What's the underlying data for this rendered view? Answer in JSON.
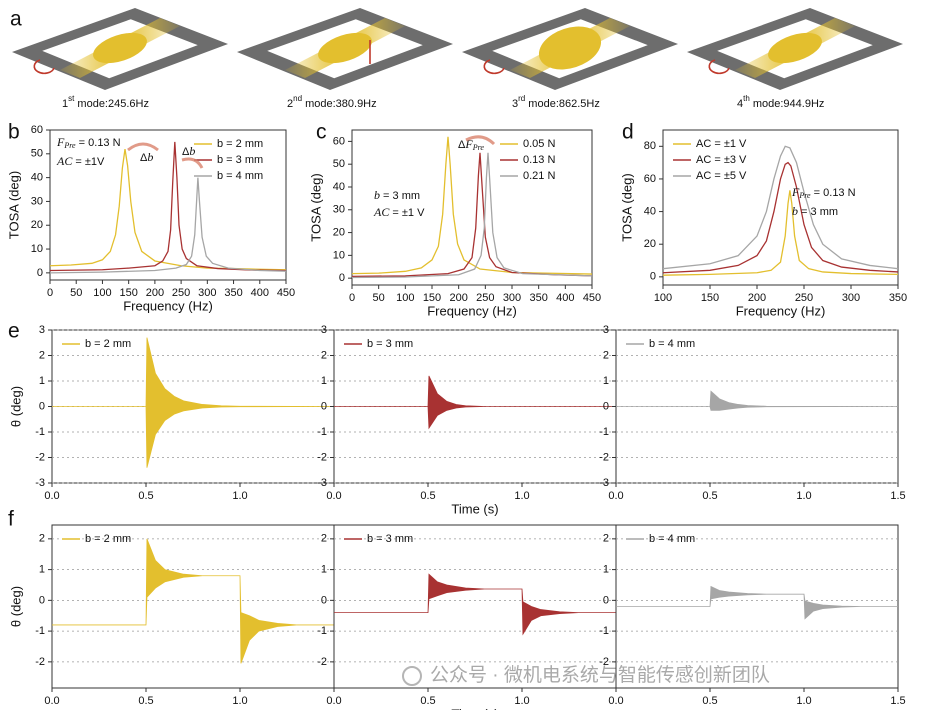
{
  "panel_labels": [
    "a",
    "b",
    "c",
    "d",
    "e",
    "f"
  ],
  "modes": [
    {
      "number": "1",
      "suffix": "st",
      "label": " mode:245.6Hz"
    },
    {
      "number": "2",
      "suffix": "nd",
      "label": " mode:380.9Hz"
    },
    {
      "number": "3",
      "suffix": "rd",
      "label": " mode:862.5Hz"
    },
    {
      "number": "4",
      "suffix": "th",
      "label": " mode:944.9Hz"
    }
  ],
  "watermark": "公众号 · 微机电系统与智能传感创新团队",
  "chart_data": [
    {
      "type": "line",
      "xlabel": "Frequency (Hz)",
      "ylabel": "TOSA (deg)",
      "xlim": [
        0,
        450
      ],
      "xticks": [
        0,
        50,
        100,
        150,
        200,
        250,
        300,
        350,
        400,
        450
      ],
      "ylim": [
        -3,
        60
      ],
      "yticks": [
        0,
        10,
        20,
        30,
        40,
        50,
        60
      ],
      "grid": false,
      "legend": "upper right",
      "annotations": [
        {
          "parts": [
            {
              "t": "F",
              "style": "italic"
            },
            {
              "t": "Pre",
              "style": "sub"
            },
            {
              "t": " = 0.13 N"
            }
          ]
        },
        {
          "parts": [
            {
              "t": "AC",
              "style": "italic"
            },
            {
              "t": " = ±1V"
            }
          ]
        },
        {
          "parts": [
            {
              "t": "Δ"
            },
            {
              "t": "b",
              "style": "italic"
            }
          ]
        },
        {
          "parts": [
            {
              "t": "Δ"
            },
            {
              "t": "b",
              "style": "italic"
            }
          ]
        }
      ],
      "series": [
        {
          "name": "b = 2 mm",
          "color": "#e3bf2e",
          "x": [
            0,
            40,
            80,
            100,
            115,
            125,
            132,
            138,
            143,
            148,
            154,
            162,
            175,
            200,
            250,
            300,
            350,
            400,
            450
          ],
          "values": [
            3,
            3.3,
            4,
            5.5,
            9,
            16,
            28,
            44,
            52,
            45,
            30,
            17,
            9,
            5,
            3,
            2,
            1.8,
            1.5,
            1.3
          ]
        },
        {
          "name": "b = 3 mm",
          "color": "#a83232",
          "x": [
            0,
            100,
            150,
            200,
            215,
            225,
            230,
            234,
            238,
            242,
            246,
            252,
            260,
            280,
            320,
            380,
            450
          ],
          "values": [
            1,
            1.3,
            2,
            3,
            5,
            9,
            18,
            38,
            55,
            40,
            20,
            10,
            6,
            3,
            1.8,
            1.2,
            1
          ]
        },
        {
          "name": "b = 4 mm",
          "color": "#a6a6a6",
          "x": [
            0,
            100,
            200,
            240,
            260,
            270,
            276,
            280,
            282,
            285,
            290,
            298,
            310,
            340,
            400,
            450
          ],
          "values": [
            0,
            0.3,
            1,
            2,
            3.5,
            7,
            16,
            32,
            40,
            30,
            15,
            7,
            4,
            2,
            1,
            0.7
          ]
        }
      ]
    },
    {
      "type": "line",
      "xlabel": "Frequency (Hz)",
      "ylabel": "TOSA (deg)",
      "xlim": [
        0,
        450
      ],
      "xticks": [
        0,
        50,
        100,
        150,
        200,
        250,
        300,
        350,
        400,
        450
      ],
      "ylim": [
        -3,
        65
      ],
      "yticks": [
        0,
        10,
        20,
        30,
        40,
        50,
        60
      ],
      "grid": false,
      "legend": "upper right",
      "annotations": [
        {
          "parts": [
            {
              "t": "Δ"
            },
            {
              "t": "F",
              "style": "italic"
            },
            {
              "t": "Pre",
              "style": "sub"
            }
          ]
        },
        {
          "parts": [
            {
              "t": "b",
              "style": "italic"
            },
            {
              "t": " = 3 mm"
            }
          ]
        },
        {
          "parts": [
            {
              "t": "AC",
              "style": "italic"
            },
            {
              "t": " = ±1 V"
            }
          ]
        }
      ],
      "series": [
        {
          "name": "0.05 N",
          "color": "#e3bf2e",
          "x": [
            0,
            50,
            100,
            130,
            150,
            162,
            170,
            176,
            180,
            184,
            190,
            198,
            210,
            240,
            300,
            450
          ],
          "values": [
            2,
            2.2,
            3,
            4.5,
            8,
            14,
            28,
            50,
            62,
            50,
            28,
            15,
            8,
            4,
            2.5,
            1.8
          ]
        },
        {
          "name": "0.13 N",
          "color": "#a83232",
          "x": [
            0,
            100,
            180,
            210,
            225,
            232,
            237,
            240,
            244,
            250,
            258,
            270,
            300,
            380,
            450
          ],
          "values": [
            0.8,
            1,
            2,
            4,
            9,
            22,
            45,
            55,
            40,
            18,
            9,
            5,
            2.5,
            1.5,
            1
          ]
        },
        {
          "name": "0.21 N",
          "color": "#a6a6a6",
          "x": [
            0,
            100,
            200,
            230,
            242,
            248,
            252,
            255,
            258,
            264,
            272,
            285,
            320,
            450
          ],
          "values": [
            0.3,
            0.5,
            1.5,
            4,
            10,
            22,
            44,
            55,
            44,
            20,
            9,
            4.5,
            2,
            1
          ]
        }
      ]
    },
    {
      "type": "line",
      "xlabel": "Frequency (Hz)",
      "ylabel": "TOSA (deg)",
      "xlim": [
        100,
        350
      ],
      "xticks": [
        100,
        150,
        200,
        250,
        300,
        350
      ],
      "ylim": [
        -5,
        90
      ],
      "yticks": [
        0,
        20,
        40,
        60,
        80
      ],
      "grid": false,
      "legend": "upper left",
      "annotations": [
        {
          "parts": [
            {
              "t": "F",
              "style": "italic"
            },
            {
              "t": "Pre",
              "style": "sub"
            },
            {
              "t": " = 0.13 N"
            }
          ]
        },
        {
          "parts": [
            {
              "t": "b",
              "style": "italic"
            },
            {
              "t": " = 3 mm"
            }
          ]
        }
      ],
      "series": [
        {
          "name": "AC = ±1 V",
          "color": "#e3bf2e",
          "x": [
            100,
            150,
            200,
            215,
            225,
            230,
            233,
            235,
            237,
            240,
            245,
            255,
            270,
            300,
            350
          ],
          "values": [
            1,
            1.5,
            2.5,
            4,
            9,
            25,
            45,
            53,
            45,
            25,
            10,
            5,
            3,
            2,
            1.5
          ]
        },
        {
          "name": "AC = ±3 V",
          "color": "#a83232",
          "x": [
            100,
            150,
            180,
            200,
            210,
            218,
            225,
            230,
            233,
            236,
            242,
            250,
            258,
            270,
            290,
            320,
            350
          ],
          "values": [
            2.5,
            4,
            7,
            13,
            22,
            40,
            60,
            69,
            70,
            68,
            55,
            32,
            18,
            10,
            6,
            4,
            3
          ]
        },
        {
          "name": "AC = ±5 V",
          "color": "#a6a6a6",
          "x": [
            100,
            150,
            180,
            200,
            210,
            218,
            225,
            230,
            235,
            242,
            250,
            260,
            270,
            290,
            320,
            350
          ],
          "values": [
            5,
            8,
            13,
            25,
            40,
            60,
            74,
            80,
            79,
            70,
            52,
            32,
            20,
            11,
            7,
            5
          ]
        }
      ]
    },
    {
      "type": "envelope",
      "ylabel": "θ (deg)",
      "xlim": [
        0,
        1.5
      ],
      "xticks": [
        {
          "value": 0,
          "label": "0.0"
        },
        0.5,
        {
          "value": 1,
          "label": "1.0"
        }
      ],
      "ylim": [
        -3,
        3
      ],
      "yticks": [
        -3,
        -2,
        -1,
        0,
        1,
        2,
        3
      ],
      "grid": true,
      "legend": "upper left",
      "series": [
        {
          "name": "b = 2 mm",
          "color": "#e3bf2e",
          "x": [
            0,
            0.5,
            0.505,
            0.55,
            0.6,
            0.65,
            0.7,
            0.8,
            0.9,
            1.0,
            1.5
          ],
          "upper": [
            0,
            0,
            2.7,
            1.3,
            0.7,
            0.4,
            0.22,
            0.08,
            0.03,
            0.01,
            0
          ],
          "lower": [
            0,
            0,
            -2.4,
            -1.1,
            -0.55,
            -0.3,
            -0.17,
            -0.06,
            -0.02,
            -0.01,
            0
          ]
        }
      ]
    },
    {
      "type": "envelope",
      "xlabel": "Time (s)",
      "xlim": [
        0,
        1.5
      ],
      "xticks": [
        {
          "value": 0,
          "label": "0.0"
        },
        0.5,
        {
          "value": 1,
          "label": "1.0"
        }
      ],
      "ylim": [
        -3,
        3
      ],
      "yticks": [
        -3,
        -2,
        -1,
        0,
        1,
        2,
        3
      ],
      "grid": true,
      "legend": "upper left",
      "series": [
        {
          "name": "b = 3 mm",
          "color": "#a83232",
          "x": [
            0,
            0.5,
            0.505,
            0.55,
            0.6,
            0.65,
            0.7,
            0.8,
            1.5
          ],
          "upper": [
            0,
            0,
            1.2,
            0.5,
            0.2,
            0.08,
            0.03,
            0,
            0
          ],
          "lower": [
            0,
            0,
            -0.85,
            -0.35,
            -0.15,
            -0.06,
            -0.02,
            0,
            0
          ]
        }
      ]
    },
    {
      "type": "envelope",
      "xlim": [
        0,
        1.5
      ],
      "xticks": [
        {
          "value": 0,
          "label": "0.0"
        },
        0.5,
        {
          "value": 1,
          "label": "1.0"
        },
        1.5
      ],
      "ylim": [
        -3,
        3
      ],
      "yticks": [
        -3,
        -2,
        -1,
        0,
        1,
        2,
        3
      ],
      "grid": true,
      "legend": "upper left",
      "series": [
        {
          "name": "b = 4 mm",
          "color": "#a6a6a6",
          "x": [
            0,
            0.5,
            0.505,
            0.55,
            0.6,
            0.65,
            0.7,
            0.8,
            1.5
          ],
          "upper": [
            0,
            0,
            0.6,
            0.3,
            0.15,
            0.08,
            0.04,
            0.01,
            0
          ],
          "lower": [
            0,
            0,
            -0.15,
            -0.15,
            -0.1,
            -0.06,
            -0.03,
            -0.01,
            0
          ]
        }
      ]
    },
    {
      "type": "envelope",
      "ylabel": "θ (deg)",
      "xlim": [
        0,
        1.5
      ],
      "xticks": [
        {
          "value": 0,
          "label": "0.0"
        },
        0.5,
        {
          "value": 1,
          "label": "1.0"
        }
      ],
      "ylim": [
        -2.85,
        2.45
      ],
      "yticks": [
        -2,
        -1,
        0,
        1,
        2
      ],
      "grid": true,
      "legend": "upper left",
      "series": [
        {
          "name": "b = 2 mm",
          "color": "#e3bf2e",
          "x": [
            0,
            0.5,
            0.505,
            0.55,
            0.6,
            0.7,
            0.8,
            1.0,
            1.005,
            1.05,
            1.1,
            1.2,
            1.3,
            1.5
          ],
          "upper": [
            -0.8,
            -0.8,
            2.0,
            1.3,
            1.0,
            0.85,
            0.8,
            0.8,
            -0.4,
            -0.5,
            -0.65,
            -0.75,
            -0.8,
            -0.8
          ],
          "lower": [
            -0.8,
            -0.8,
            0.1,
            0.4,
            0.6,
            0.75,
            0.8,
            0.8,
            -2.05,
            -1.3,
            -1.0,
            -0.85,
            -0.8,
            -0.8
          ]
        }
      ]
    },
    {
      "type": "envelope",
      "xlabel": "Time (s)",
      "xlim": [
        0,
        1.5
      ],
      "xticks": [
        {
          "value": 0,
          "label": "0.0"
        },
        0.5,
        {
          "value": 1,
          "label": "1.0"
        }
      ],
      "ylim": [
        -2.85,
        2.45
      ],
      "yticks": [
        -2,
        -1,
        0,
        1,
        2
      ],
      "grid": true,
      "legend": "upper left",
      "series": [
        {
          "name": "b = 3 mm",
          "color": "#a83232",
          "x": [
            0,
            0.5,
            0.505,
            0.55,
            0.6,
            0.7,
            0.8,
            1.0,
            1.005,
            1.05,
            1.1,
            1.2,
            1.3,
            1.5
          ],
          "upper": [
            -0.4,
            -0.4,
            0.85,
            0.6,
            0.5,
            0.4,
            0.37,
            0.37,
            -0.05,
            -0.2,
            -0.3,
            -0.37,
            -0.4,
            -0.4
          ],
          "lower": [
            -0.4,
            -0.4,
            0.05,
            0.15,
            0.25,
            0.33,
            0.37,
            0.37,
            -1.1,
            -0.65,
            -0.5,
            -0.43,
            -0.4,
            -0.4
          ]
        }
      ]
    },
    {
      "type": "envelope",
      "xlim": [
        0,
        1.5
      ],
      "xticks": [
        {
          "value": 0,
          "label": "0.0"
        },
        0.5,
        {
          "value": 1,
          "label": "1.0"
        },
        1.5
      ],
      "ylim": [
        -2.85,
        2.45
      ],
      "yticks": [
        -2,
        -1,
        0,
        1,
        2
      ],
      "grid": true,
      "legend": "upper left",
      "series": [
        {
          "name": "b = 4 mm",
          "color": "#a6a6a6",
          "x": [
            0,
            0.5,
            0.505,
            0.55,
            0.6,
            0.7,
            0.8,
            1.0,
            1.005,
            1.05,
            1.1,
            1.2,
            1.3,
            1.5
          ],
          "upper": [
            -0.2,
            -0.2,
            0.45,
            0.32,
            0.27,
            0.22,
            0.2,
            0.2,
            -0.02,
            -0.1,
            -0.15,
            -0.19,
            -0.2,
            -0.2
          ],
          "lower": [
            -0.2,
            -0.2,
            0.05,
            0.1,
            0.14,
            0.18,
            0.2,
            0.2,
            -0.6,
            -0.35,
            -0.27,
            -0.22,
            -0.2,
            -0.2
          ]
        }
      ]
    }
  ]
}
